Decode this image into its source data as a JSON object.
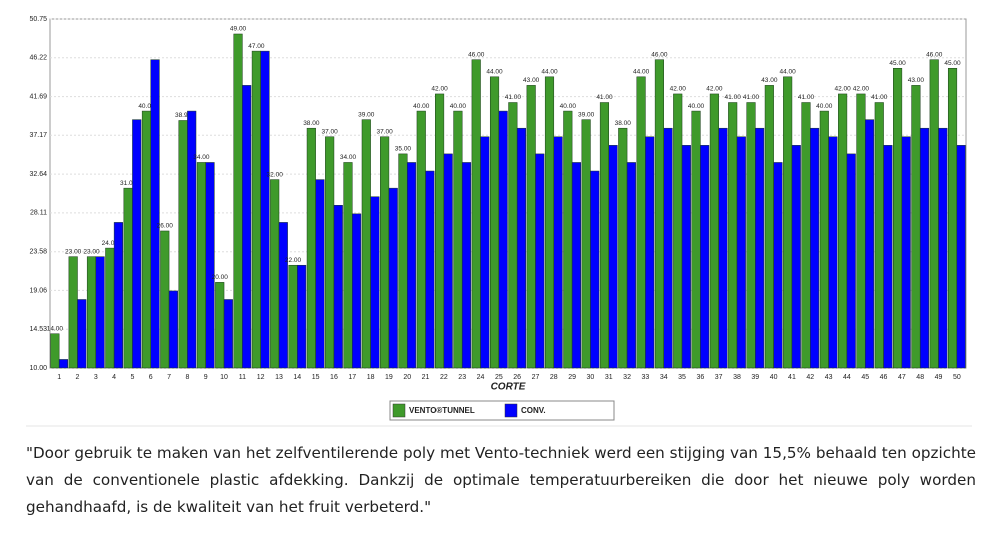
{
  "chart_data": {
    "type": "bar",
    "x_label": "CORTE",
    "categories": [
      "1",
      "2",
      "3",
      "4",
      "5",
      "6",
      "7",
      "8",
      "9",
      "10",
      "11",
      "12",
      "13",
      "14",
      "15",
      "16",
      "17",
      "18",
      "19",
      "20",
      "21",
      "22",
      "23",
      "24",
      "25",
      "26",
      "27",
      "28",
      "29",
      "30",
      "31",
      "32",
      "33",
      "34",
      "35",
      "36",
      "37",
      "38",
      "39",
      "40",
      "41",
      "42",
      "43",
      "44",
      "45",
      "46",
      "47",
      "48",
      "49",
      "50"
    ],
    "series": [
      {
        "name": "VENTO®TUNNEL",
        "color": "#3f9a2b",
        "values": [
          14,
          23,
          23,
          24,
          31,
          40,
          26,
          38.9,
          34,
          20,
          49,
          47,
          32,
          22,
          38,
          37,
          34,
          39,
          37,
          35,
          40,
          42,
          40,
          46,
          44,
          41,
          43,
          44,
          40,
          39,
          41,
          38,
          44,
          46,
          42,
          40,
          42,
          41,
          41,
          43,
          44,
          41,
          40,
          42,
          42,
          41,
          45,
          43,
          46,
          45
        ],
        "value_labels": [
          "14.00",
          "23.00",
          "23.00",
          "24.00",
          "31.00",
          "40.00",
          "26.00",
          "38.90",
          "34.00",
          "20.00",
          "49.00",
          "47.00",
          "32.00",
          "22.00",
          "38.00",
          "37.00",
          "34.00",
          "39.00",
          "37.00",
          "35.00",
          "40.00",
          "42.00",
          "40.00",
          "46.00",
          "44.00",
          "41.00",
          "43.00",
          "44.00",
          "40.00",
          "39.00",
          "41.00",
          "38.00",
          "44.00",
          "46.00",
          "42.00",
          "40.00",
          "42.00",
          "41.00",
          "41.00",
          "43.00",
          "44.00",
          "41.00",
          "40.00",
          "42.00",
          "42.00",
          "41.00",
          "45.00",
          "43.00",
          "46.00",
          "45.00"
        ]
      },
      {
        "name": "CONV.",
        "color": "#0000ff",
        "values": [
          11,
          18,
          23,
          27,
          39,
          46,
          19,
          40,
          34,
          18,
          43,
          47,
          27,
          22,
          32,
          29,
          28,
          30,
          31,
          34,
          33,
          35,
          34,
          37,
          40,
          38,
          35,
          37,
          34,
          33,
          36,
          34,
          37,
          38,
          36,
          36,
          38,
          37,
          38,
          34,
          36,
          38,
          37,
          35,
          39,
          36,
          37,
          38,
          38,
          36
        ]
      }
    ],
    "ylim": [
      10,
      50.75
    ],
    "yticks": [
      {
        "value": 10,
        "label": "10.00"
      },
      {
        "value": 14.53,
        "label": "14.53"
      },
      {
        "value": 19.06,
        "label": "19.06"
      },
      {
        "value": 23.58,
        "label": "23.58"
      },
      {
        "value": 28.11,
        "label": "28.11"
      },
      {
        "value": 32.64,
        "label": "32.64"
      },
      {
        "value": 37.17,
        "label": "37.17"
      },
      {
        "value": 41.69,
        "label": "41.69"
      },
      {
        "value": 46.22,
        "label": "46.22"
      },
      {
        "value": 50.75,
        "label": "50.75"
      }
    ],
    "grid": true
  },
  "caption": "\"Door gebruik te maken van het zelfventilerende poly met Vento-techniek werd een stijging van 15,5% behaald ten opzichte van de conventionele plastic afdekking. Dankzij de optimale temperatuurbereiken die door het nieuwe poly worden gehandhaafd, is de kwaliteit van het fruit verbeterd.\""
}
